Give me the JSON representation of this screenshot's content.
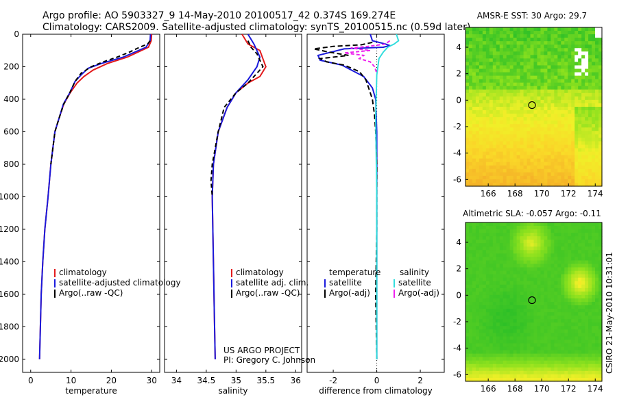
{
  "figure": {
    "title_line1": "Argo profile: AO 5903327_9 14-May-2010 20100517_42 0.374S 169.274E",
    "title_line2": "Climatology: CARS2009. Satellite-adjusted climatology: synTS_20100515.nc (0.59d later)",
    "credit_line1": "US ARGO PROJECT",
    "credit_line2": "PI: Gregory C. Johnson",
    "stamp": "CSIRO 21-May-2010 10:31:01"
  },
  "colors": {
    "climatology": "#e31a1c",
    "satellite": "#1a1adc",
    "argo": "#000000",
    "salinity_satellite": "#33dddd",
    "salinity_argo": "#ee22ee"
  },
  "chart_data": [
    {
      "type": "line",
      "id": "temperature",
      "xlabel": "temperature",
      "ylim": [
        0,
        2080
      ],
      "yreverse": true,
      "yticks": [
        0,
        200,
        400,
        600,
        800,
        1000,
        1200,
        1400,
        1600,
        1800,
        2000
      ],
      "xlim": [
        -2,
        32
      ],
      "xticks": [
        0,
        10,
        20,
        30
      ],
      "legend": [
        "climatology",
        "satellite-adjusted climatology",
        "Argo(..raw -QC)"
      ],
      "series": [
        {
          "name": "climatology",
          "color_key": "climatology",
          "dash": "",
          "x": [
            30.0,
            29.9,
            29.2,
            24,
            19,
            15.5,
            13.2,
            11.5,
            9.8,
            8.2,
            7.0,
            6.0,
            5.0,
            4.3,
            3.5,
            3.0,
            2.6,
            2.4,
            2.2
          ],
          "y": [
            0,
            40,
            80,
            140,
            180,
            220,
            260,
            300,
            360,
            430,
            520,
            600,
            800,
            1000,
            1200,
            1400,
            1600,
            1800,
            2000
          ]
        },
        {
          "name": "satellite-adjusted climatology",
          "color_key": "satellite",
          "dash": "",
          "x": [
            29.7,
            29.6,
            28.6,
            23,
            17.5,
            14.2,
            12.5,
            11.0,
            9.7,
            8.1,
            7.0,
            6.0,
            5.0,
            4.3,
            3.5,
            3.0,
            2.6,
            2.4,
            2.2
          ],
          "y": [
            0,
            40,
            80,
            140,
            180,
            210,
            250,
            290,
            360,
            430,
            520,
            600,
            800,
            1000,
            1200,
            1400,
            1600,
            1800,
            2000
          ]
        },
        {
          "name": "Argo(..raw -QC)",
          "color_key": "argo",
          "dash": "6,4",
          "x": [
            29.6,
            29.0,
            27.0,
            24.5,
            21.5,
            18.0,
            15.0,
            12.5,
            11.0,
            9.7,
            8.2,
            7.0,
            6.0,
            5.0
          ],
          "y": [
            40,
            60,
            80,
            110,
            140,
            170,
            200,
            240,
            290,
            360,
            430,
            520,
            600,
            800
          ]
        }
      ]
    },
    {
      "type": "line",
      "id": "salinity",
      "xlabel": "salinity",
      "ylim": [
        0,
        2080
      ],
      "yreverse": true,
      "xlim": [
        33.8,
        36.1
      ],
      "xticks": [
        34,
        34.5,
        35,
        35.5,
        36
      ],
      "xticklabels": [
        "34",
        "34.5",
        "35",
        "35.5",
        "36"
      ],
      "legend": [
        "climatology",
        "satellite adj. clim.",
        "Argo(..raw -QC)"
      ],
      "series": [
        {
          "name": "climatology",
          "color_key": "climatology",
          "dash": "",
          "x": [
            35.1,
            35.2,
            35.4,
            35.5,
            35.4,
            35.2,
            35.0,
            34.85,
            34.7,
            34.62,
            34.6,
            34.62,
            34.64,
            34.65
          ],
          "y": [
            0,
            60,
            100,
            200,
            260,
            300,
            360,
            450,
            600,
            800,
            1000,
            1400,
            1800,
            2000
          ]
        },
        {
          "name": "satellite adj. clim.",
          "color_key": "satellite",
          "dash": "",
          "x": [
            35.2,
            35.3,
            35.4,
            35.35,
            35.2,
            35.0,
            34.85,
            34.7,
            34.62,
            34.6,
            34.62,
            34.64,
            34.65
          ],
          "y": [
            0,
            60,
            140,
            200,
            280,
            360,
            450,
            600,
            800,
            1000,
            1400,
            1800,
            2000
          ]
        },
        {
          "name": "Argo(..raw -QC)",
          "color_key": "argo",
          "dash": "6,4",
          "x": [
            35.2,
            35.25,
            35.35,
            35.45,
            35.3,
            35.2,
            35.0,
            34.8,
            34.7,
            34.6,
            34.58,
            34.6
          ],
          "y": [
            40,
            80,
            120,
            200,
            260,
            300,
            360,
            450,
            600,
            800,
            900,
            1000
          ]
        }
      ]
    },
    {
      "type": "line",
      "id": "difference",
      "xlabel": "difference from climatology",
      "ylim": [
        0,
        2080
      ],
      "yreverse": true,
      "xlim": [
        -3.2,
        3.1
      ],
      "xticks": [
        -2,
        0,
        2
      ],
      "legend_left_title": "temperature",
      "legend_right_title": "salinity",
      "legend_left": [
        "satellite",
        "Argo(-adj)"
      ],
      "legend_right": [
        "satellite",
        "Argo(-adj)"
      ],
      "series": [
        {
          "name": "temperature satellite",
          "color_key": "satellite",
          "dash": "",
          "x": [
            -0.3,
            -0.2,
            0.4,
            0.6,
            0.3,
            -1.5,
            -2.7,
            -2.6,
            -1.6,
            -0.6,
            -0.2,
            -0.05,
            0,
            0,
            0,
            0
          ],
          "y": [
            0,
            40,
            60,
            70,
            80,
            90,
            130,
            160,
            190,
            260,
            330,
            400,
            600,
            1000,
            1500,
            2000
          ]
        },
        {
          "name": "temperature Argo(-adj)",
          "color_key": "argo",
          "dash": "7,4",
          "x": [
            -0.2,
            -0.7,
            -2.0,
            -2.9,
            -2.2,
            -1.3,
            -2.6,
            -2.3,
            -1.5,
            -0.8,
            -0.5,
            -0.4,
            -0.2,
            -0.1,
            -0.05,
            0,
            0,
            -0.05,
            0
          ],
          "y": [
            50,
            65,
            75,
            90,
            110,
            130,
            150,
            170,
            190,
            230,
            280,
            320,
            400,
            500,
            600,
            800,
            1200,
            1600,
            2000
          ]
        },
        {
          "name": "salinity satellite",
          "color_key": "salinity_satellite",
          "dash": "",
          "x": [
            0.9,
            1.0,
            0.8,
            0.5,
            0.3,
            0.1,
            0,
            -0.05,
            0,
            0
          ],
          "y": [
            0,
            40,
            60,
            80,
            110,
            150,
            250,
            500,
            1000,
            2000
          ]
        },
        {
          "name": "salinity Argo(-adj)",
          "color_key": "salinity_argo",
          "dash": "5,3",
          "x": [
            0.6,
            0.4,
            -0.4,
            -1.2,
            -0.3,
            -1.5,
            -0.6,
            -0.8,
            -0.3,
            -0.1,
            0
          ],
          "y": [
            40,
            60,
            75,
            85,
            100,
            115,
            130,
            150,
            170,
            200,
            240
          ]
        }
      ]
    },
    {
      "type": "heatmap",
      "id": "sst_map",
      "title": "AMSR-E SST: 30 Argo: 29.7",
      "xlim": [
        164.3,
        174.5
      ],
      "ylim": [
        -6.5,
        5.5
      ],
      "xticks": [
        166,
        168,
        170,
        172,
        174
      ],
      "yticks": [
        -6,
        -4,
        -2,
        0,
        2,
        4
      ],
      "marker": {
        "x": 169.274,
        "y": -0.374
      }
    },
    {
      "type": "heatmap",
      "id": "sla_map",
      "title": "Altimetric SLA: -0.057 Argo: -0.11",
      "xlim": [
        164.3,
        174.5
      ],
      "ylim": [
        -6.5,
        5.5
      ],
      "xticks": [
        166,
        168,
        170,
        172,
        174
      ],
      "yticks": [
        -6,
        -4,
        -2,
        0,
        2,
        4
      ],
      "marker": {
        "x": 169.274,
        "y": -0.374
      }
    }
  ]
}
